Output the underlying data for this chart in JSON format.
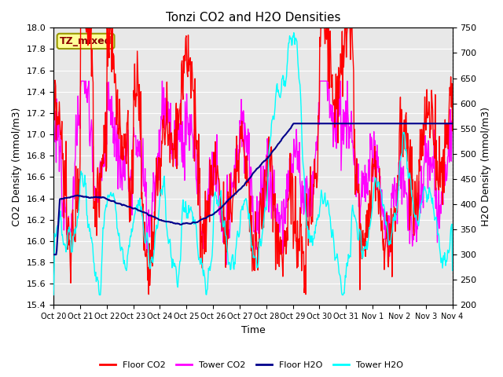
{
  "title": "Tonzi CO2 and H2O Densities",
  "xlabel": "Time",
  "ylabel_left": "CO2 Density (mmol/m3)",
  "ylabel_right": "H2O Density (mmol/m3)",
  "ylim_left": [
    15.4,
    18.0
  ],
  "ylim_right": [
    200,
    750
  ],
  "yticks_left": [
    15.4,
    15.6,
    15.8,
    16.0,
    16.2,
    16.4,
    16.6,
    16.8,
    17.0,
    17.2,
    17.4,
    17.6,
    17.8,
    18.0
  ],
  "yticks_right": [
    200,
    250,
    300,
    350,
    400,
    450,
    500,
    550,
    600,
    650,
    700,
    750
  ],
  "xtick_labels": [
    "Oct 20",
    "Oct 21",
    "Oct 22",
    "Oct 23",
    "Oct 24",
    "Oct 25",
    "Oct 26",
    "Oct 27",
    "Oct 28",
    "Oct 29",
    "Oct 30",
    "Oct 31",
    "Nov 1",
    "Nov 2",
    "Nov 3",
    "Nov 4"
  ],
  "annotation_text": "TZ_mixed",
  "annotation_color": "#8B0000",
  "annotation_bg": "#FFFF99",
  "annotation_edge": "#999900",
  "floor_co2_color": "#FF0000",
  "tower_co2_color": "#FF00FF",
  "floor_h2o_color": "#00008B",
  "tower_h2o_color": "#00FFFF",
  "line_width": 1.0,
  "bg_color": "#E8E8E8",
  "grid_color": "#FFFFFF",
  "title_fontsize": 11,
  "label_fontsize": 9,
  "tick_fontsize": 8,
  "xtick_fontsize": 7,
  "legend_fontsize": 8
}
